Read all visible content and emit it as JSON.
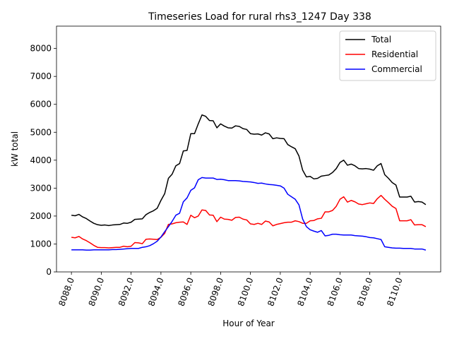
{
  "chart_data": {
    "type": "line",
    "title": "Timeseries Load for rural rhs3_1247  Day 338",
    "xlabel": "Hour of Year",
    "ylabel": "kW total",
    "xlim": [
      8087.0,
      8112.75
    ],
    "ylim": [
      0,
      8800
    ],
    "x_ticks": [
      8088,
      8090,
      8092,
      8094,
      8096,
      8098,
      8100,
      8102,
      8104,
      8106,
      8108,
      8110
    ],
    "x_tick_labels": [
      "8088.0",
      "8090.0",
      "8092.0",
      "8094.0",
      "8096.0",
      "8098.0",
      "8100.0",
      "8102.0",
      "8104.0",
      "8106.0",
      "8108.0",
      "8110.0"
    ],
    "y_ticks": [
      0,
      1000,
      2000,
      3000,
      4000,
      5000,
      6000,
      7000,
      8000
    ],
    "y_tick_labels": [
      "0",
      "1000",
      "2000",
      "3000",
      "4000",
      "5000",
      "6000",
      "7000",
      "8000"
    ],
    "legend_position": "top-right",
    "x": [
      8088.0,
      8088.25,
      8088.5,
      8088.75,
      8089.0,
      8089.25,
      8089.5,
      8089.75,
      8090.0,
      8090.25,
      8090.5,
      8090.75,
      8091.0,
      8091.25,
      8091.5,
      8091.75,
      8092.0,
      8092.25,
      8092.5,
      8092.75,
      8093.0,
      8093.25,
      8093.5,
      8093.75,
      8094.0,
      8094.25,
      8094.5,
      8094.75,
      8095.0,
      8095.25,
      8095.5,
      8095.75,
      8096.0,
      8096.25,
      8096.5,
      8096.75,
      8097.0,
      8097.25,
      8097.5,
      8097.75,
      8098.0,
      8098.25,
      8098.5,
      8098.75,
      8099.0,
      8099.25,
      8099.5,
      8099.75,
      8100.0,
      8100.25,
      8100.5,
      8100.75,
      8101.0,
      8101.25,
      8101.5,
      8101.75,
      8102.0,
      8102.25,
      8102.5,
      8102.75,
      8103.0,
      8103.25,
      8103.5,
      8103.75,
      8104.0,
      8104.25,
      8104.5,
      8104.75,
      8105.0,
      8105.25,
      8105.5,
      8105.75,
      8106.0,
      8106.25,
      8106.5,
      8106.75,
      8107.0,
      8107.25,
      8107.5,
      8107.75,
      8108.0,
      8108.25,
      8108.5,
      8108.75,
      8109.0,
      8109.25,
      8109.5,
      8109.75,
      8110.0,
      8110.25,
      8110.5,
      8110.75,
      8111.0,
      8111.25,
      8111.5,
      8111.75
    ],
    "series": [
      {
        "name": "Total",
        "color": "#000000",
        "values": [
          2030,
          2010,
          2060,
          1970,
          1910,
          1820,
          1740,
          1690,
          1670,
          1680,
          1660,
          1680,
          1690,
          1700,
          1750,
          1740,
          1780,
          1880,
          1890,
          1900,
          2050,
          2130,
          2190,
          2280,
          2560,
          2800,
          3350,
          3500,
          3800,
          3880,
          4330,
          4350,
          4950,
          4950,
          5300,
          5620,
          5570,
          5420,
          5410,
          5160,
          5300,
          5220,
          5160,
          5150,
          5230,
          5210,
          5130,
          5100,
          4950,
          4930,
          4940,
          4900,
          4980,
          4940,
          4770,
          4800,
          4780,
          4770,
          4560,
          4480,
          4410,
          4150,
          3640,
          3400,
          3420,
          3330,
          3350,
          3430,
          3450,
          3470,
          3560,
          3700,
          3920,
          4000,
          3820,
          3860,
          3800,
          3700,
          3690,
          3700,
          3680,
          3640,
          3800,
          3880,
          3480,
          3350,
          3200,
          3110,
          2680,
          2680,
          2680,
          2710,
          2500,
          2520,
          2500,
          2410
        ]
      },
      {
        "name": "Residential",
        "color": "#ff0000",
        "values": [
          1240,
          1220,
          1270,
          1180,
          1120,
          1040,
          950,
          880,
          870,
          870,
          860,
          870,
          880,
          880,
          920,
          900,
          920,
          1050,
          1040,
          1010,
          1170,
          1180,
          1170,
          1160,
          1240,
          1380,
          1700,
          1720,
          1760,
          1780,
          1790,
          1700,
          2030,
          1940,
          2000,
          2220,
          2200,
          2040,
          2030,
          1800,
          1960,
          1890,
          1880,
          1850,
          1950,
          1960,
          1890,
          1860,
          1720,
          1700,
          1740,
          1700,
          1820,
          1790,
          1650,
          1700,
          1730,
          1760,
          1780,
          1780,
          1830,
          1800,
          1740,
          1740,
          1830,
          1840,
          1900,
          1920,
          2150,
          2150,
          2200,
          2350,
          2600,
          2690,
          2500,
          2560,
          2510,
          2430,
          2410,
          2440,
          2470,
          2450,
          2620,
          2740,
          2600,
          2480,
          2350,
          2270,
          1830,
          1830,
          1830,
          1870,
          1680,
          1690,
          1690,
          1620
        ]
      },
      {
        "name": "Commercial",
        "color": "#0000ff",
        "values": [
          790,
          790,
          790,
          790,
          780,
          780,
          790,
          790,
          790,
          790,
          790,
          800,
          800,
          810,
          820,
          830,
          840,
          840,
          840,
          880,
          900,
          940,
          1010,
          1100,
          1250,
          1440,
          1620,
          1810,
          2030,
          2100,
          2510,
          2650,
          2920,
          3010,
          3300,
          3380,
          3360,
          3360,
          3360,
          3310,
          3320,
          3300,
          3270,
          3270,
          3270,
          3260,
          3240,
          3230,
          3220,
          3200,
          3170,
          3180,
          3150,
          3130,
          3120,
          3100,
          3080,
          3000,
          2780,
          2690,
          2600,
          2400,
          1890,
          1620,
          1510,
          1460,
          1420,
          1480,
          1290,
          1310,
          1350,
          1350,
          1330,
          1320,
          1320,
          1320,
          1300,
          1290,
          1280,
          1260,
          1230,
          1220,
          1190,
          1160,
          900,
          880,
          860,
          850,
          850,
          840,
          840,
          840,
          820,
          820,
          820,
          780
        ]
      }
    ]
  }
}
